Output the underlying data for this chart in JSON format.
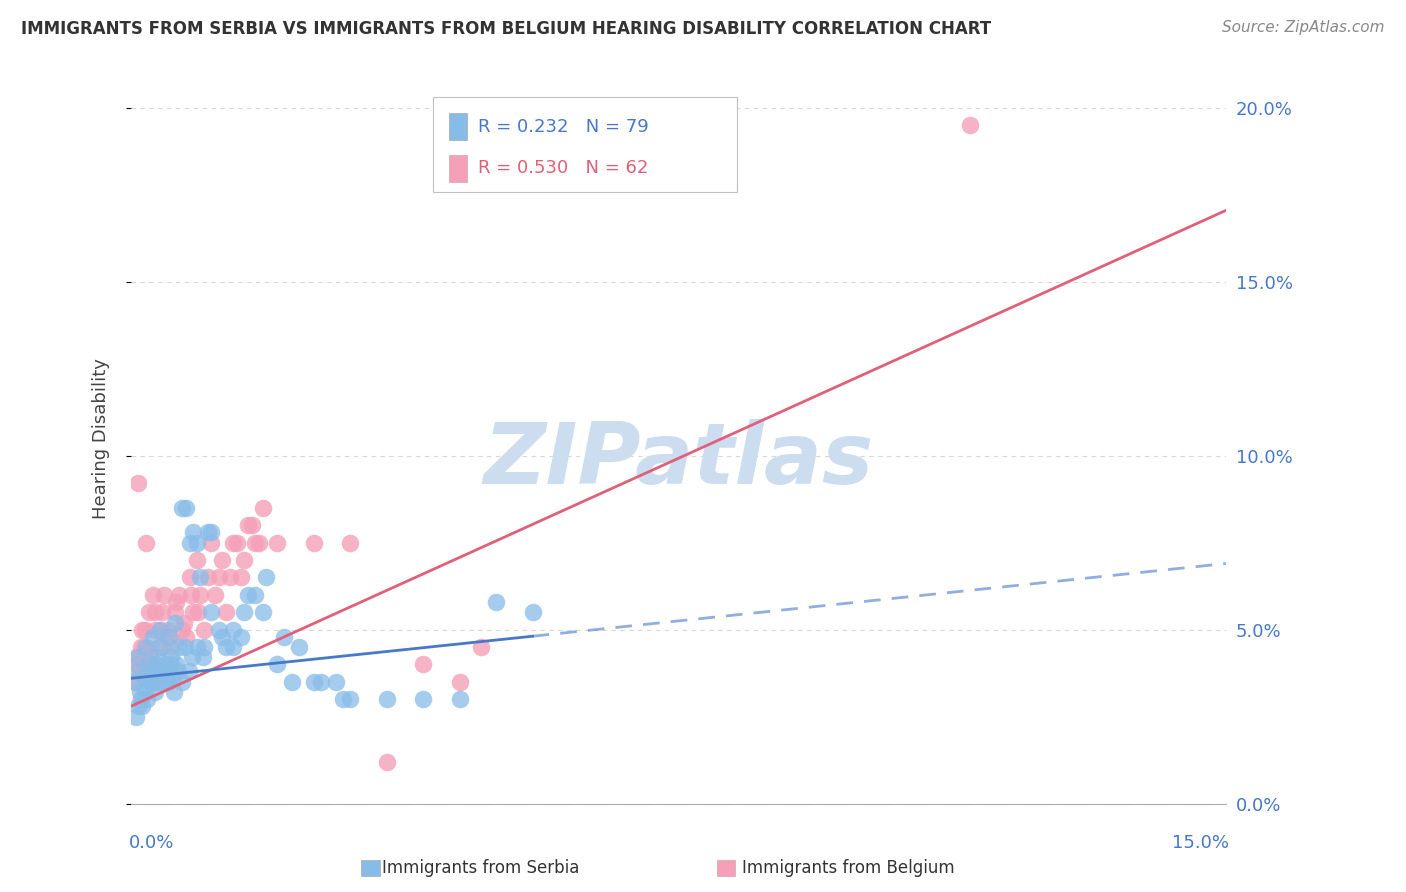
{
  "title": "IMMIGRANTS FROM SERBIA VS IMMIGRANTS FROM BELGIUM HEARING DISABILITY CORRELATION CHART",
  "source": "Source: ZipAtlas.com",
  "ylabel": "Hearing Disability",
  "xlim": [
    0.0,
    15.0
  ],
  "ylim": [
    0.0,
    21.0
  ],
  "yticks": [
    0.0,
    5.0,
    10.0,
    15.0,
    20.0
  ],
  "ytick_labels": [
    "0.0%",
    "5.0%",
    "10.0%",
    "15.0%",
    "20.0%"
  ],
  "series1_label": "Immigrants from Serbia",
  "series1_color": "#88bce8",
  "series1_line_color": "#4878c8",
  "series1_R": "0.232",
  "series1_N": "79",
  "series2_label": "Immigrants from Belgium",
  "series2_color": "#f5a0b8",
  "series2_line_color": "#e0607a",
  "series2_R": "0.530",
  "series2_N": "62",
  "text_color_blue": "#4878c8",
  "text_color_pink": "#e0607a",
  "watermark_text": "ZIPatlas",
  "watermark_color": "#ccddf0",
  "background_color": "#ffffff",
  "grid_color": "#d8d8d8",
  "serbia_slope": 0.22,
  "serbia_intercept": 3.6,
  "belgium_slope": 0.95,
  "belgium_intercept": 2.8,
  "serbia_x": [
    0.05,
    0.08,
    0.1,
    0.12,
    0.15,
    0.18,
    0.2,
    0.22,
    0.25,
    0.28,
    0.3,
    0.32,
    0.35,
    0.38,
    0.4,
    0.42,
    0.45,
    0.48,
    0.5,
    0.52,
    0.55,
    0.58,
    0.6,
    0.62,
    0.65,
    0.7,
    0.75,
    0.8,
    0.85,
    0.9,
    0.95,
    1.0,
    1.05,
    1.1,
    1.2,
    1.3,
    1.4,
    1.5,
    1.6,
    1.8,
    2.0,
    2.2,
    2.5,
    2.8,
    3.0,
    3.5,
    4.0,
    4.5,
    5.0,
    5.5,
    0.06,
    0.09,
    0.14,
    0.19,
    0.24,
    0.29,
    0.34,
    0.39,
    0.44,
    0.49,
    0.54,
    0.59,
    0.64,
    0.69,
    0.74,
    0.79,
    0.84,
    0.9,
    0.98,
    1.1,
    1.25,
    1.4,
    1.55,
    1.7,
    1.85,
    2.1,
    2.3,
    2.6,
    2.9
  ],
  "serbia_y": [
    3.5,
    3.8,
    4.2,
    3.2,
    2.8,
    3.6,
    4.5,
    3.0,
    4.0,
    3.5,
    4.8,
    3.2,
    4.2,
    3.8,
    5.0,
    4.5,
    3.8,
    4.0,
    3.5,
    4.8,
    4.2,
    3.6,
    5.2,
    4.0,
    4.5,
    8.5,
    8.5,
    7.5,
    7.8,
    7.5,
    6.5,
    4.5,
    7.8,
    7.8,
    5.0,
    4.5,
    4.5,
    4.8,
    6.0,
    5.5,
    4.0,
    3.5,
    3.5,
    3.5,
    3.0,
    3.0,
    3.0,
    3.0,
    5.8,
    5.5,
    2.5,
    2.8,
    3.0,
    3.2,
    3.8,
    3.5,
    4.0,
    3.5,
    3.8,
    3.5,
    4.0,
    3.2,
    3.8,
    3.5,
    4.5,
    3.8,
    4.2,
    4.5,
    4.2,
    5.5,
    4.8,
    5.0,
    5.5,
    6.0,
    6.5,
    4.8,
    4.5,
    3.5,
    3.0
  ],
  "belgium_x": [
    0.05,
    0.08,
    0.1,
    0.12,
    0.15,
    0.18,
    0.2,
    0.22,
    0.25,
    0.28,
    0.3,
    0.32,
    0.35,
    0.38,
    0.4,
    0.45,
    0.5,
    0.55,
    0.6,
    0.65,
    0.7,
    0.75,
    0.8,
    0.85,
    0.9,
    0.95,
    1.0,
    1.1,
    1.2,
    1.3,
    1.4,
    1.5,
    1.6,
    1.7,
    1.8,
    2.0,
    2.5,
    3.0,
    3.5,
    4.0,
    4.5,
    0.07,
    0.13,
    0.19,
    0.26,
    0.33,
    0.42,
    0.52,
    0.62,
    0.72,
    0.82,
    0.92,
    1.05,
    1.15,
    1.25,
    1.35,
    1.45,
    1.55,
    1.65,
    1.75,
    4.8,
    11.5
  ],
  "belgium_y": [
    3.5,
    4.0,
    9.2,
    3.8,
    5.0,
    4.5,
    7.5,
    3.8,
    5.5,
    4.0,
    6.0,
    5.5,
    3.5,
    4.5,
    5.0,
    6.0,
    5.0,
    4.5,
    5.5,
    6.0,
    5.0,
    4.8,
    6.5,
    5.5,
    7.0,
    6.0,
    5.0,
    7.5,
    6.5,
    5.5,
    7.5,
    6.5,
    8.0,
    7.5,
    8.5,
    7.5,
    7.5,
    7.5,
    1.2,
    4.0,
    3.5,
    4.2,
    4.5,
    5.0,
    4.2,
    5.0,
    5.5,
    4.8,
    5.8,
    5.2,
    6.0,
    5.5,
    6.5,
    6.0,
    7.0,
    6.5,
    7.5,
    7.0,
    8.0,
    7.5,
    4.5,
    19.5
  ]
}
